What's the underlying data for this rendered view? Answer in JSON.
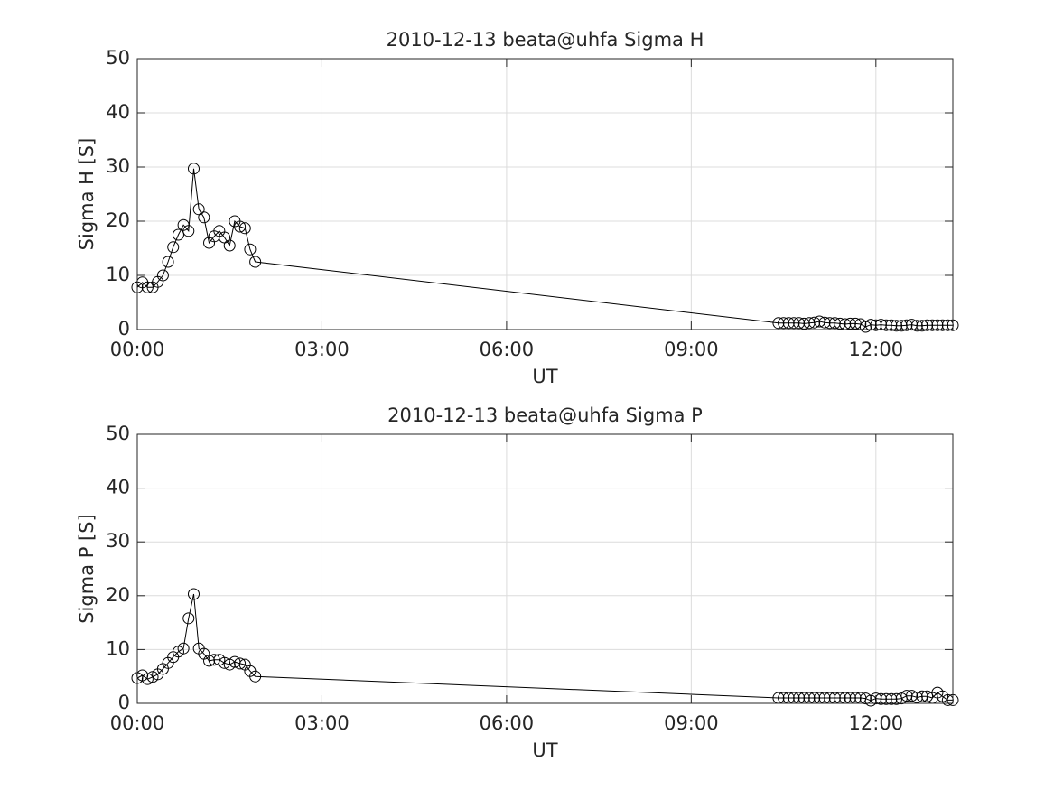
{
  "chart_data": [
    {
      "type": "line",
      "title": "2010-12-13  beata@uhfa Sigma H",
      "xlabel": "UT",
      "ylabel": "Sigma H [S]",
      "color": "#000000",
      "marker": "circle",
      "grid": true,
      "x": [
        0,
        0.083,
        0.167,
        0.25,
        0.333,
        0.417,
        0.5,
        0.583,
        0.667,
        0.75,
        0.833,
        0.917,
        1,
        1.083,
        1.167,
        1.25,
        1.333,
        1.417,
        1.5,
        1.583,
        1.667,
        1.75,
        1.833,
        1.917,
        10.417,
        10.5,
        10.583,
        10.667,
        10.75,
        10.833,
        10.917,
        11,
        11.083,
        11.167,
        11.25,
        11.333,
        11.417,
        11.5,
        11.583,
        11.667,
        11.75,
        11.833,
        11.917,
        12,
        12.083,
        12.167,
        12.25,
        12.333,
        12.417,
        12.5,
        12.583,
        12.667,
        12.75,
        12.833,
        12.917,
        13,
        13.083,
        13.167,
        13.25
      ],
      "values": [
        7.8,
        8.7,
        7.8,
        7.8,
        8.8,
        10,
        12.5,
        15.2,
        17.5,
        19.3,
        18.2,
        29.7,
        22.2,
        20.7,
        16,
        17.2,
        18.2,
        17,
        15.5,
        20,
        19,
        18.7,
        14.8,
        12.5,
        1.2,
        1.2,
        1.2,
        1.2,
        1.2,
        1.1,
        1.2,
        1.3,
        1.5,
        1.3,
        1.2,
        1.2,
        1.1,
        1,
        1.1,
        1.1,
        1,
        0.5,
        0.9,
        0.8,
        0.9,
        0.8,
        0.8,
        0.7,
        0.7,
        0.8,
        0.9,
        0.7,
        0.7,
        0.8,
        0.8,
        0.8,
        0.8,
        0.8,
        0.8
      ],
      "xlim": [
        0,
        13.25
      ],
      "ylim": [
        0,
        50
      ],
      "xticks": [
        {
          "value": 0,
          "label": "00:00"
        },
        {
          "value": 3,
          "label": "03:00"
        },
        {
          "value": 6,
          "label": "06:00"
        },
        {
          "value": 9,
          "label": "09:00"
        },
        {
          "value": 12,
          "label": "12:00"
        }
      ],
      "yticks": [
        0,
        10,
        20,
        30,
        40,
        50
      ]
    },
    {
      "type": "line",
      "title": "2010-12-13  beata@uhfa Sigma P",
      "xlabel": "UT",
      "ylabel": "Sigma P [S]",
      "color": "#000000",
      "marker": "circle",
      "grid": true,
      "x": [
        0,
        0.083,
        0.167,
        0.25,
        0.333,
        0.417,
        0.5,
        0.583,
        0.667,
        0.75,
        0.833,
        0.917,
        1,
        1.083,
        1.167,
        1.25,
        1.333,
        1.417,
        1.5,
        1.583,
        1.667,
        1.75,
        1.833,
        1.917,
        10.417,
        10.5,
        10.583,
        10.667,
        10.75,
        10.833,
        10.917,
        11,
        11.083,
        11.167,
        11.25,
        11.333,
        11.417,
        11.5,
        11.583,
        11.667,
        11.75,
        11.833,
        11.917,
        12,
        12.083,
        12.167,
        12.25,
        12.333,
        12.417,
        12.5,
        12.583,
        12.667,
        12.75,
        12.833,
        12.917,
        13,
        13.083,
        13.167,
        13.25
      ],
      "values": [
        4.7,
        5.2,
        4.5,
        4.9,
        5.4,
        6.4,
        7.5,
        8.6,
        9.6,
        10.2,
        15.8,
        20.3,
        10.2,
        9.2,
        7.9,
        8.1,
        8.1,
        7.5,
        7.2,
        7.7,
        7.4,
        7.2,
        6,
        5,
        1,
        1,
        1,
        1,
        1,
        1,
        1,
        1,
        1,
        1,
        1,
        1,
        1,
        1,
        1,
        1,
        1,
        0.9,
        0.5,
        0.9,
        0.8,
        0.8,
        0.8,
        0.8,
        0.9,
        1.4,
        1.4,
        1.1,
        1.3,
        1.3,
        1,
        2,
        1.3,
        0.6,
        0.6
      ],
      "xlim": [
        0,
        13.25
      ],
      "ylim": [
        0,
        50
      ],
      "xticks": [
        {
          "value": 0,
          "label": "00:00"
        },
        {
          "value": 3,
          "label": "03:00"
        },
        {
          "value": 6,
          "label": "06:00"
        },
        {
          "value": 9,
          "label": "09:00"
        },
        {
          "value": 12,
          "label": "12:00"
        }
      ],
      "yticks": [
        0,
        10,
        20,
        30,
        40,
        50
      ]
    }
  ]
}
